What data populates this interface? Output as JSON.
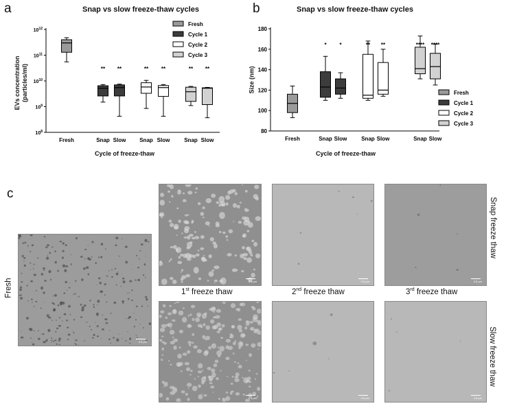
{
  "panel_labels": {
    "a": "a",
    "b": "b",
    "c": "c"
  },
  "chart_data": [
    {
      "type": "boxplot",
      "panel": "a",
      "title": "Snap vs slow freeze-thaw cycles",
      "xlabel": "Cycle of freeze-thaw",
      "ylabel_line1": "EVs concentration",
      "ylabel_line2": "(particles/ml)",
      "yscale": "log",
      "ylim": [
        100000000,
        1000000000000
      ],
      "yticks": [
        {
          "base": "10",
          "exp": "8"
        },
        {
          "base": "10",
          "exp": "9"
        },
        {
          "base": "10",
          "exp": "10"
        },
        {
          "base": "10",
          "exp": "11"
        },
        {
          "base": "10",
          "exp": "12"
        }
      ],
      "group_labels": [
        "Fresh",
        "Snap",
        "Slow",
        "Snap",
        "Slow",
        "Snap",
        "Slow"
      ],
      "legend": [
        "Fresh",
        "Cycle 1",
        "Cycle 2",
        "Cycle 3"
      ],
      "legend_position": "top-right",
      "series_colors": [
        "#9a9a9a",
        "#3c3c3c",
        "#ffffff",
        "#d2d2d2"
      ],
      "boxes": [
        {
          "label": "Fresh",
          "series": 0,
          "min": 55000000000.0,
          "q1": 130000000000.0,
          "median": 300000000000.0,
          "q3": 400000000000.0,
          "max": 480000000000.0,
          "sig": ""
        },
        {
          "label": "Snap",
          "series": 1,
          "min": 1500000000.0,
          "q1": 2600000000.0,
          "median": 5200000000.0,
          "q3": 6500000000.0,
          "max": 7200000000.0,
          "sig": "**"
        },
        {
          "label": "Slow",
          "series": 1,
          "min": 420000000.0,
          "q1": 2600000000.0,
          "median": 5500000000.0,
          "q3": 7000000000.0,
          "max": 7500000000.0,
          "sig": "**"
        },
        {
          "label": "Snap",
          "series": 2,
          "min": 850000000.0,
          "q1": 3300000000.0,
          "median": 5800000000.0,
          "q3": 8500000000.0,
          "max": 10500000000.0,
          "sig": "**"
        },
        {
          "label": "Slow",
          "series": 2,
          "min": 420000000.0,
          "q1": 2500000000.0,
          "median": 5500000000.0,
          "q3": 6600000000.0,
          "max": 7200000000.0,
          "sig": "**"
        },
        {
          "label": "Snap",
          "series": 3,
          "min": 1100000000.0,
          "q1": 1600000000.0,
          "median": 3800000000.0,
          "q3": 5700000000.0,
          "max": 6100000000.0,
          "sig": "**"
        },
        {
          "label": "Slow",
          "series": 3,
          "min": 370000000.0,
          "q1": 1200000000.0,
          "median": 5200000000.0,
          "q3": 5400000000.0,
          "max": 5600000000.0,
          "sig": "**"
        }
      ]
    },
    {
      "type": "boxplot",
      "panel": "b",
      "title": "Snap vs slow freeze-thaw cycles",
      "xlabel": "Cycle of freeze-thaw",
      "ylabel": "Size (nm)",
      "ylim": [
        80,
        180
      ],
      "yticks": [
        "80",
        "100",
        "120",
        "140",
        "160",
        "180"
      ],
      "group_labels": [
        "Fresh",
        "Snap",
        "Slow",
        "Snap",
        "Slow",
        "Snap",
        "Slow"
      ],
      "legend": [
        "Fresh",
        "Cycle 1",
        "Cycle 2",
        "Cycle 3"
      ],
      "legend_position": "right",
      "series_colors": [
        "#9a9a9a",
        "#3c3c3c",
        "#ffffff",
        "#d2d2d2"
      ],
      "boxes": [
        {
          "label": "Fresh",
          "series": 0,
          "min": 93,
          "q1": 98,
          "median": 107,
          "q3": 116,
          "max": 124,
          "sig": ""
        },
        {
          "label": "Snap",
          "series": 1,
          "min": 110,
          "q1": 113,
          "median": 123,
          "q3": 138,
          "max": 153,
          "sig": "*"
        },
        {
          "label": "Slow",
          "series": 1,
          "min": 112,
          "q1": 116,
          "median": 122,
          "q3": 131,
          "max": 137,
          "sig": "*"
        },
        {
          "label": "Snap",
          "series": 2,
          "min": 110,
          "q1": 112,
          "median": 115,
          "q3": 155,
          "max": 168,
          "sig": "**"
        },
        {
          "label": "Slow",
          "series": 2,
          "min": 114,
          "q1": 116,
          "median": 120,
          "q3": 147,
          "max": 160,
          "sig": "**"
        },
        {
          "label": "Snap",
          "series": 3,
          "min": 131,
          "q1": 136,
          "median": 141,
          "q3": 162,
          "max": 173,
          "sig": "****"
        },
        {
          "label": "Slow",
          "series": 3,
          "min": 125,
          "q1": 131,
          "median": 143,
          "q3": 156,
          "max": 165,
          "sig": "****"
        }
      ]
    }
  ],
  "micrographs": {
    "row_labels": {
      "fresh": "Fresh",
      "snap": "Snap freeze thaw",
      "slow": "Slow freeze thaw"
    },
    "column_labels": [
      {
        "num": "1",
        "sup": "st",
        "rest": " freeze thaw"
      },
      {
        "num": "2",
        "sup": "nd",
        "rest": " freeze thaw"
      },
      {
        "num": "3",
        "sup": "rd",
        "rest": " freeze thaw"
      }
    ],
    "scale_bar_label": "0.5 µm",
    "tones": {
      "fresh": "#9c9c9c",
      "c1": "#8f8f8f",
      "c2": "#b8b8b8",
      "c3": "#9d9d9d"
    }
  }
}
